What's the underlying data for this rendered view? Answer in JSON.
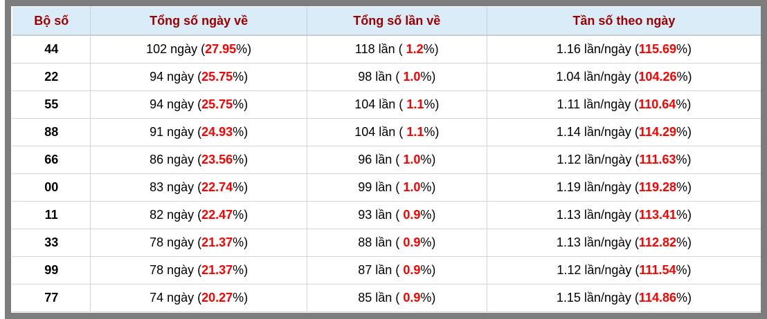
{
  "colors": {
    "frame": "#7d7d7d",
    "header_bg": "#d9ecf8",
    "header_text": "#9c0000",
    "highlight": "#fe0000"
  },
  "table": {
    "headers": [
      "Bộ số",
      "Tổng số ngày về",
      "Tổng số lần về",
      "Tần số theo ngày"
    ],
    "rows": [
      {
        "pair": "44",
        "days_prefix": "102 ngày (",
        "days_value": "27.95",
        "days_suffix": "%)",
        "times_prefix": "118 lần ( ",
        "times_value": "1.2",
        "times_suffix": "%)",
        "freq_prefix": "1.16 lần/ngày (",
        "freq_value": "115.69",
        "freq_suffix": "%)"
      },
      {
        "pair": "22",
        "days_prefix": "94 ngày (",
        "days_value": "25.75",
        "days_suffix": "%)",
        "times_prefix": "98 lần ( ",
        "times_value": "1.0",
        "times_suffix": "%)",
        "freq_prefix": "1.04 lần/ngày (",
        "freq_value": "104.26",
        "freq_suffix": "%)"
      },
      {
        "pair": "55",
        "days_prefix": "94 ngày (",
        "days_value": "25.75",
        "days_suffix": "%)",
        "times_prefix": "104 lần ( ",
        "times_value": "1.1",
        "times_suffix": "%)",
        "freq_prefix": "1.11 lần/ngày (",
        "freq_value": "110.64",
        "freq_suffix": "%)"
      },
      {
        "pair": "88",
        "days_prefix": "91 ngày (",
        "days_value": "24.93",
        "days_suffix": "%)",
        "times_prefix": "104 lần ( ",
        "times_value": "1.1",
        "times_suffix": "%)",
        "freq_prefix": "1.14 lần/ngày (",
        "freq_value": "114.29",
        "freq_suffix": "%)"
      },
      {
        "pair": "66",
        "days_prefix": "86 ngày (",
        "days_value": "23.56",
        "days_suffix": "%)",
        "times_prefix": "96 lần ( ",
        "times_value": "1.0",
        "times_suffix": "%)",
        "freq_prefix": "1.12 lần/ngày (",
        "freq_value": "111.63",
        "freq_suffix": "%)"
      },
      {
        "pair": "00",
        "days_prefix": "83 ngày (",
        "days_value": "22.74",
        "days_suffix": "%)",
        "times_prefix": "99 lần ( ",
        "times_value": "1.0",
        "times_suffix": "%)",
        "freq_prefix": "1.19 lần/ngày (",
        "freq_value": "119.28",
        "freq_suffix": "%)"
      },
      {
        "pair": "11",
        "days_prefix": "82 ngày (",
        "days_value": "22.47",
        "days_suffix": "%)",
        "times_prefix": "93 lần ( ",
        "times_value": "0.9",
        "times_suffix": "%)",
        "freq_prefix": "1.13 lần/ngày (",
        "freq_value": "113.41",
        "freq_suffix": "%)"
      },
      {
        "pair": "33",
        "days_prefix": "78 ngày (",
        "days_value": "21.37",
        "days_suffix": "%)",
        "times_prefix": "88 lần ( ",
        "times_value": "0.9",
        "times_suffix": "%)",
        "freq_prefix": "1.13 lần/ngày (",
        "freq_value": "112.82",
        "freq_suffix": "%)"
      },
      {
        "pair": "99",
        "days_prefix": "78 ngày (",
        "days_value": "21.37",
        "days_suffix": "%)",
        "times_prefix": "87 lần ( ",
        "times_value": "0.9",
        "times_suffix": "%)",
        "freq_prefix": "1.12 lần/ngày (",
        "freq_value": "111.54",
        "freq_suffix": "%)"
      },
      {
        "pair": "77",
        "days_prefix": "74 ngày (",
        "days_value": "20.27",
        "days_suffix": "%)",
        "times_prefix": "85 lần ( ",
        "times_value": "0.9",
        "times_suffix": "%)",
        "freq_prefix": "1.15 lần/ngày (",
        "freq_value": "114.86",
        "freq_suffix": "%)"
      }
    ]
  }
}
